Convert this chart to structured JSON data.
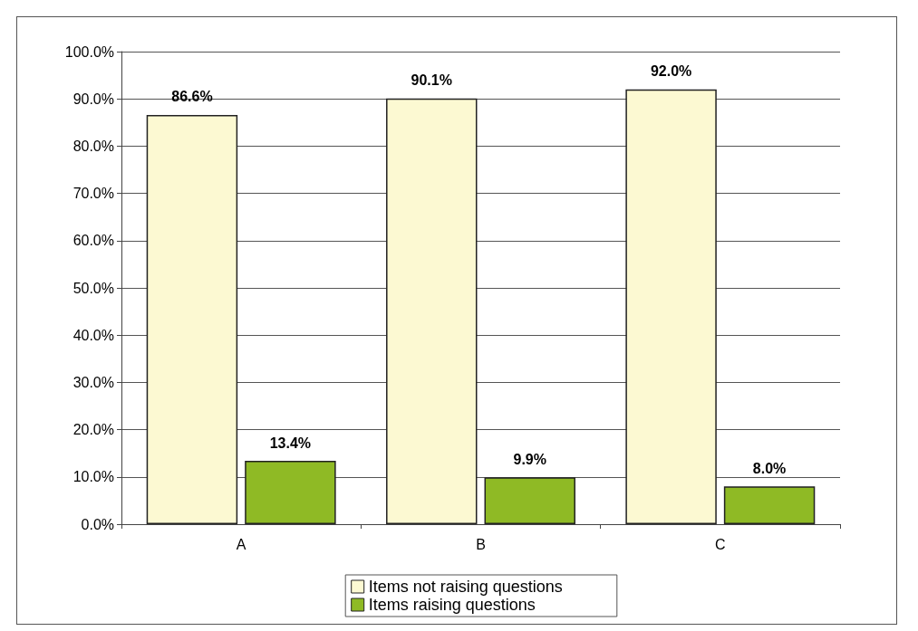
{
  "chart_data": {
    "type": "bar",
    "categories": [
      "A",
      "B",
      "C"
    ],
    "series": [
      {
        "name": "Items not raising questions",
        "color": "#fcf9d2",
        "values": [
          86.6,
          90.1,
          92.0
        ],
        "value_labels": [
          "86.6%",
          "90.1%",
          "92.0%"
        ]
      },
      {
        "name": "Items raising questions",
        "color": "#8fba25",
        "values": [
          13.4,
          9.9,
          8.0
        ],
        "value_labels": [
          "13.4%",
          "9.9%",
          "8.0%"
        ]
      }
    ],
    "ylim": [
      0,
      100
    ],
    "yticks": [
      {
        "value": 0,
        "label": "0.0%"
      },
      {
        "value": 10,
        "label": "10.0%"
      },
      {
        "value": 20,
        "label": "20.0%"
      },
      {
        "value": 30,
        "label": "30.0%"
      },
      {
        "value": 40,
        "label": "40.0%"
      },
      {
        "value": 50,
        "label": "50.0%"
      },
      {
        "value": 60,
        "label": "60.0%"
      },
      {
        "value": 70,
        "label": "70.0%"
      },
      {
        "value": 80,
        "label": "80.0%"
      },
      {
        "value": 90,
        "label": "90.0%"
      },
      {
        "value": 100,
        "label": "100.0%"
      }
    ],
    "grid": "y",
    "legend": "bottom"
  }
}
